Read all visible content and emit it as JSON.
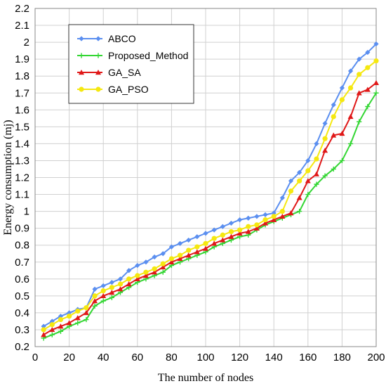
{
  "chart_data": {
    "type": "line",
    "title": "",
    "xlabel": "The number of nodes",
    "ylabel": "Energy consumption (mj)",
    "xlim": [
      0,
      200
    ],
    "ylim": [
      0.2,
      2.2
    ],
    "x_ticks": [
      0,
      20,
      40,
      60,
      80,
      100,
      120,
      140,
      160,
      180,
      200
    ],
    "y_ticks": [
      0.2,
      0.3,
      0.4,
      0.5,
      0.6,
      0.7,
      0.8,
      0.9,
      1,
      1.1,
      1.2,
      1.3,
      1.4,
      1.5,
      1.6,
      1.7,
      1.8,
      1.9,
      2,
      2.1,
      2.2
    ],
    "y_tick_labels": [
      "0.2",
      "0.3",
      "0.4",
      "0.5",
      "0.6",
      "0.7",
      "0.8",
      "0.9",
      "1",
      "1.1",
      "1.2",
      "1.3",
      "1.4",
      "1.5",
      "1.6",
      "1.7",
      "1.8",
      "1.9",
      "2",
      "2.1",
      "2.2"
    ],
    "grid": true,
    "legend_position": "top-left",
    "x": [
      5,
      10,
      15,
      20,
      25,
      30,
      35,
      40,
      45,
      50,
      55,
      60,
      65,
      70,
      75,
      80,
      85,
      90,
      95,
      100,
      105,
      110,
      115,
      120,
      125,
      130,
      135,
      140,
      145,
      150,
      155,
      160,
      165,
      170,
      175,
      180,
      185,
      190,
      195,
      200
    ],
    "series": [
      {
        "name": "ABCO",
        "color": "#5B8FF0",
        "marker": "diamond",
        "values": [
          0.32,
          0.35,
          0.38,
          0.4,
          0.42,
          0.43,
          0.54,
          0.56,
          0.58,
          0.6,
          0.65,
          0.68,
          0.7,
          0.73,
          0.75,
          0.79,
          0.81,
          0.83,
          0.85,
          0.87,
          0.89,
          0.91,
          0.93,
          0.95,
          0.96,
          0.97,
          0.98,
          0.99,
          1.08,
          1.18,
          1.23,
          1.3,
          1.4,
          1.52,
          1.63,
          1.73,
          1.83,
          1.9,
          1.94,
          1.99
        ]
      },
      {
        "name": "Proposed_Method",
        "color": "#33D633",
        "marker": "plus",
        "values": [
          0.25,
          0.27,
          0.29,
          0.32,
          0.34,
          0.36,
          0.44,
          0.47,
          0.49,
          0.52,
          0.55,
          0.58,
          0.6,
          0.62,
          0.64,
          0.68,
          0.7,
          0.72,
          0.74,
          0.76,
          0.79,
          0.81,
          0.83,
          0.85,
          0.86,
          0.89,
          0.92,
          0.94,
          0.96,
          0.98,
          1.0,
          1.1,
          1.16,
          1.21,
          1.25,
          1.3,
          1.4,
          1.53,
          1.62,
          1.7
        ]
      },
      {
        "name": "GA_SA",
        "color": "#E01818",
        "marker": "triangle",
        "values": [
          0.27,
          0.3,
          0.32,
          0.34,
          0.37,
          0.4,
          0.47,
          0.5,
          0.52,
          0.54,
          0.57,
          0.6,
          0.62,
          0.64,
          0.67,
          0.7,
          0.72,
          0.74,
          0.76,
          0.78,
          0.81,
          0.83,
          0.85,
          0.87,
          0.88,
          0.9,
          0.93,
          0.95,
          0.97,
          0.99,
          1.08,
          1.18,
          1.22,
          1.36,
          1.45,
          1.46,
          1.56,
          1.7,
          1.72,
          1.76
        ]
      },
      {
        "name": "GA_PSO",
        "color": "#F5E810",
        "marker": "circle",
        "values": [
          0.3,
          0.33,
          0.36,
          0.38,
          0.41,
          0.43,
          0.5,
          0.53,
          0.55,
          0.57,
          0.6,
          0.62,
          0.64,
          0.66,
          0.69,
          0.72,
          0.74,
          0.77,
          0.79,
          0.81,
          0.84,
          0.86,
          0.88,
          0.89,
          0.91,
          0.92,
          0.95,
          0.97,
          1.0,
          1.12,
          1.18,
          1.24,
          1.31,
          1.43,
          1.56,
          1.66,
          1.73,
          1.81,
          1.85,
          1.89
        ]
      }
    ]
  }
}
